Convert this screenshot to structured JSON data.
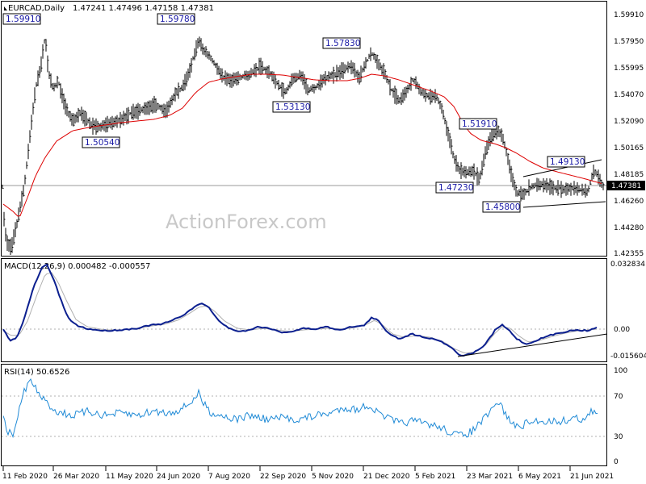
{
  "chart_data": [
    {
      "type": "candlestick",
      "symbol": "EURCAD,Daily",
      "ohlc": "1.47241 1.47496 1.47158 1.47381",
      "price_ticks": [
        "1.59910",
        "1.57950",
        "1.55995",
        "1.54070",
        "1.52090",
        "1.50165",
        "1.48185",
        "1.46260",
        "1.44280",
        "1.42355"
      ],
      "current_price": "1.47381",
      "annotations": [
        "1.59910",
        "1.59780",
        "1.57830",
        "1.53130",
        "1.50540",
        "1.51910",
        "1.49130",
        "1.47230",
        "1.45800"
      ],
      "overlay": "moving average (red)",
      "watermark": "ActionForex.com",
      "x_labels": [
        "11 Feb 2020",
        "26 Mar 2020",
        "11 May 2020",
        "24 Jun 2020",
        "7 Aug 2020",
        "22 Sep 2020",
        "5 Nov 2020",
        "21 Dec 2020",
        "5 Feb 2021",
        "23 Mar 2021",
        "6 May 2021",
        "21 Jun 2021"
      ]
    },
    {
      "type": "line",
      "title": "MACD(12,26,9) 0.000482 -0.000557",
      "y_ticks": [
        "0.032834",
        "0.00",
        "-0.015604"
      ]
    },
    {
      "type": "line",
      "title": "RSI(14) 50.6526",
      "y_ticks": [
        "100",
        "70",
        "30",
        "0"
      ],
      "levels": [
        70,
        30
      ]
    }
  ]
}
